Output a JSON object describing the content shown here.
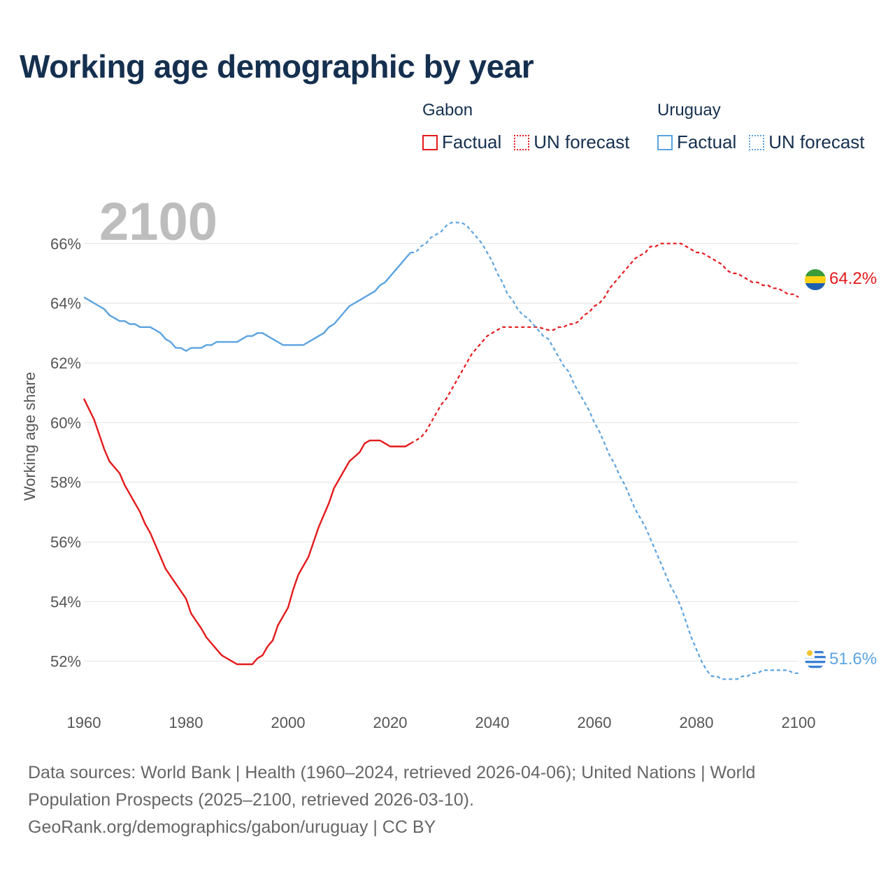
{
  "title": "Working age demographic by year",
  "year_label": "2100",
  "legend": [
    {
      "group": "Gabon",
      "factual": "Factual",
      "forecast": "UN forecast",
      "color": "#e41a1c"
    },
    {
      "group": "Uruguay",
      "factual": "Factual",
      "forecast": "UN forecast",
      "color": "#5ba3e0"
    }
  ],
  "sources": {
    "line1": "Data sources: World Bank | Health (1960–2024, retrieved 2026-04-06); United Nations | World",
    "line2": "Population Prospects (2025–2100, retrieved 2026-03-10).",
    "line3": "GeoRank.org/demographics/gabon/uruguay | CC BY"
  },
  "chart_data": {
    "type": "line",
    "title": "Working age demographic by year",
    "xlabel": "",
    "ylabel": "Working age share",
    "xlim": [
      1960,
      2100
    ],
    "ylim": [
      50.4,
      67.6
    ],
    "x_ticks": [
      1960,
      1980,
      2000,
      2020,
      2040,
      2060,
      2080,
      2100
    ],
    "x_tick_labels": [
      "1960",
      "1980",
      "2000",
      "2020",
      "2040",
      "2060",
      "2080",
      "2100"
    ],
    "y_ticks": [
      52,
      54,
      56,
      58,
      60,
      62,
      64,
      66
    ],
    "y_tick_labels": [
      "52%",
      "54%",
      "56%",
      "58%",
      "60%",
      "62%",
      "64%",
      "66%"
    ],
    "grid": true,
    "factual_range": [
      1960,
      2024
    ],
    "forecast_range": [
      2025,
      2100
    ],
    "series": [
      {
        "name": "Gabon",
        "color": "#e41a1c",
        "end_label": "64.2%",
        "points": [
          [
            1960,
            60.8
          ],
          [
            1962,
            60.1
          ],
          [
            1963,
            59.6
          ],
          [
            1964,
            59.1
          ],
          [
            1965,
            58.7
          ],
          [
            1967,
            58.3
          ],
          [
            1968,
            57.9
          ],
          [
            1969,
            57.6
          ],
          [
            1970,
            57.3
          ],
          [
            1971,
            57.0
          ],
          [
            1972,
            56.6
          ],
          [
            1973,
            56.3
          ],
          [
            1975,
            55.5
          ],
          [
            1976,
            55.1
          ],
          [
            1978,
            54.6
          ],
          [
            1980,
            54.1
          ],
          [
            1981,
            53.6
          ],
          [
            1983,
            53.1
          ],
          [
            1984,
            52.8
          ],
          [
            1985,
            52.6
          ],
          [
            1986,
            52.4
          ],
          [
            1987,
            52.2
          ],
          [
            1988,
            52.1
          ],
          [
            1989,
            52.0
          ],
          [
            1990,
            51.9
          ],
          [
            1991,
            51.9
          ],
          [
            1993,
            51.9
          ],
          [
            1994,
            52.1
          ],
          [
            1995,
            52.2
          ],
          [
            1996,
            52.5
          ],
          [
            1997,
            52.7
          ],
          [
            1998,
            53.2
          ],
          [
            2000,
            53.8
          ],
          [
            2001,
            54.4
          ],
          [
            2002,
            54.9
          ],
          [
            2004,
            55.5
          ],
          [
            2005,
            56.0
          ],
          [
            2006,
            56.5
          ],
          [
            2007,
            56.9
          ],
          [
            2008,
            57.3
          ],
          [
            2009,
            57.8
          ],
          [
            2010,
            58.1
          ],
          [
            2011,
            58.4
          ],
          [
            2012,
            58.7
          ],
          [
            2014,
            59.0
          ],
          [
            2015,
            59.3
          ],
          [
            2016,
            59.4
          ],
          [
            2017,
            59.4
          ],
          [
            2018,
            59.4
          ],
          [
            2019,
            59.3
          ],
          [
            2020,
            59.2
          ],
          [
            2021,
            59.2
          ],
          [
            2022,
            59.2
          ],
          [
            2023,
            59.2
          ],
          [
            2024,
            59.3
          ],
          [
            2025,
            59.4
          ],
          [
            2026,
            59.5
          ],
          [
            2027,
            59.7
          ],
          [
            2028,
            60.0
          ],
          [
            2029,
            60.3
          ],
          [
            2030,
            60.6
          ],
          [
            2031,
            60.8
          ],
          [
            2032,
            61.1
          ],
          [
            2033,
            61.4
          ],
          [
            2034,
            61.7
          ],
          [
            2035,
            62.0
          ],
          [
            2036,
            62.3
          ],
          [
            2037,
            62.5
          ],
          [
            2038,
            62.7
          ],
          [
            2039,
            62.9
          ],
          [
            2040,
            63.0
          ],
          [
            2041,
            63.1
          ],
          [
            2042,
            63.2
          ],
          [
            2043,
            63.2
          ],
          [
            2045,
            63.2
          ],
          [
            2047,
            63.2
          ],
          [
            2049,
            63.2
          ],
          [
            2051,
            63.1
          ],
          [
            2052,
            63.1
          ],
          [
            2053,
            63.2
          ],
          [
            2054,
            63.2
          ],
          [
            2055,
            63.3
          ],
          [
            2056,
            63.3
          ],
          [
            2057,
            63.4
          ],
          [
            2058,
            63.6
          ],
          [
            2059,
            63.7
          ],
          [
            2060,
            63.9
          ],
          [
            2061,
            64.0
          ],
          [
            2062,
            64.2
          ],
          [
            2063,
            64.5
          ],
          [
            2064,
            64.7
          ],
          [
            2065,
            64.9
          ],
          [
            2066,
            65.1
          ],
          [
            2067,
            65.3
          ],
          [
            2068,
            65.5
          ],
          [
            2069,
            65.6
          ],
          [
            2070,
            65.7
          ],
          [
            2071,
            65.9
          ],
          [
            2072,
            65.9
          ],
          [
            2073,
            66.0
          ],
          [
            2074,
            66.0
          ],
          [
            2075,
            66.0
          ],
          [
            2076,
            66.0
          ],
          [
            2077,
            66.0
          ],
          [
            2078,
            65.9
          ],
          [
            2079,
            65.8
          ],
          [
            2080,
            65.7
          ],
          [
            2081,
            65.7
          ],
          [
            2082,
            65.6
          ],
          [
            2083,
            65.5
          ],
          [
            2084,
            65.4
          ],
          [
            2085,
            65.3
          ],
          [
            2086,
            65.1
          ],
          [
            2087,
            65.0
          ],
          [
            2088,
            65.0
          ],
          [
            2089,
            64.9
          ],
          [
            2090,
            64.8
          ],
          [
            2091,
            64.7
          ],
          [
            2092,
            64.7
          ],
          [
            2093,
            64.6
          ],
          [
            2094,
            64.6
          ],
          [
            2095,
            64.5
          ],
          [
            2096,
            64.5
          ],
          [
            2097,
            64.4
          ],
          [
            2098,
            64.3
          ],
          [
            2099,
            64.3
          ],
          [
            2100,
            64.2
          ]
        ]
      },
      {
        "name": "Uruguay",
        "color": "#5ba3e0",
        "end_label": "51.6%",
        "points": [
          [
            1960,
            64.2
          ],
          [
            1962,
            64.0
          ],
          [
            1963,
            63.9
          ],
          [
            1964,
            63.8
          ],
          [
            1965,
            63.6
          ],
          [
            1967,
            63.4
          ],
          [
            1968,
            63.4
          ],
          [
            1969,
            63.3
          ],
          [
            1970,
            63.3
          ],
          [
            1971,
            63.2
          ],
          [
            1973,
            63.2
          ],
          [
            1974,
            63.1
          ],
          [
            1975,
            63.0
          ],
          [
            1976,
            62.8
          ],
          [
            1977,
            62.7
          ],
          [
            1978,
            62.5
          ],
          [
            1979,
            62.5
          ],
          [
            1980,
            62.4
          ],
          [
            1981,
            62.5
          ],
          [
            1983,
            62.5
          ],
          [
            1984,
            62.6
          ],
          [
            1985,
            62.6
          ],
          [
            1986,
            62.7
          ],
          [
            1988,
            62.7
          ],
          [
            1990,
            62.7
          ],
          [
            1991,
            62.8
          ],
          [
            1992,
            62.9
          ],
          [
            1993,
            62.9
          ],
          [
            1994,
            63.0
          ],
          [
            1995,
            63.0
          ],
          [
            1996,
            62.9
          ],
          [
            1997,
            62.8
          ],
          [
            1998,
            62.7
          ],
          [
            1999,
            62.6
          ],
          [
            2000,
            62.6
          ],
          [
            2001,
            62.6
          ],
          [
            2002,
            62.6
          ],
          [
            2003,
            62.6
          ],
          [
            2004,
            62.7
          ],
          [
            2005,
            62.8
          ],
          [
            2006,
            62.9
          ],
          [
            2007,
            63.0
          ],
          [
            2008,
            63.2
          ],
          [
            2009,
            63.3
          ],
          [
            2010,
            63.5
          ],
          [
            2011,
            63.7
          ],
          [
            2012,
            63.9
          ],
          [
            2013,
            64.0
          ],
          [
            2014,
            64.1
          ],
          [
            2015,
            64.2
          ],
          [
            2016,
            64.3
          ],
          [
            2017,
            64.4
          ],
          [
            2018,
            64.6
          ],
          [
            2019,
            64.7
          ],
          [
            2020,
            64.9
          ],
          [
            2021,
            65.1
          ],
          [
            2022,
            65.3
          ],
          [
            2023,
            65.5
          ],
          [
            2024,
            65.7
          ],
          [
            2025,
            65.7
          ],
          [
            2026,
            65.9
          ],
          [
            2027,
            66.0
          ],
          [
            2028,
            66.2
          ],
          [
            2029,
            66.3
          ],
          [
            2030,
            66.4
          ],
          [
            2031,
            66.6
          ],
          [
            2032,
            66.7
          ],
          [
            2033,
            66.7
          ],
          [
            2034,
            66.7
          ],
          [
            2035,
            66.6
          ],
          [
            2036,
            66.4
          ],
          [
            2037,
            66.2
          ],
          [
            2038,
            66.0
          ],
          [
            2039,
            65.7
          ],
          [
            2040,
            65.4
          ],
          [
            2041,
            65.0
          ],
          [
            2042,
            64.7
          ],
          [
            2043,
            64.3
          ],
          [
            2044,
            64.1
          ],
          [
            2045,
            63.8
          ],
          [
            2046,
            63.6
          ],
          [
            2047,
            63.5
          ],
          [
            2048,
            63.3
          ],
          [
            2049,
            63.1
          ],
          [
            2050,
            62.9
          ],
          [
            2051,
            62.8
          ],
          [
            2052,
            62.5
          ],
          [
            2053,
            62.2
          ],
          [
            2054,
            61.9
          ],
          [
            2055,
            61.7
          ],
          [
            2056,
            61.3
          ],
          [
            2057,
            61.0
          ],
          [
            2058,
            60.7
          ],
          [
            2059,
            60.4
          ],
          [
            2060,
            60.0
          ],
          [
            2061,
            59.7
          ],
          [
            2062,
            59.3
          ],
          [
            2063,
            58.9
          ],
          [
            2064,
            58.6
          ],
          [
            2065,
            58.2
          ],
          [
            2066,
            57.9
          ],
          [
            2067,
            57.5
          ],
          [
            2068,
            57.1
          ],
          [
            2069,
            56.8
          ],
          [
            2070,
            56.5
          ],
          [
            2071,
            56.1
          ],
          [
            2072,
            55.7
          ],
          [
            2073,
            55.3
          ],
          [
            2074,
            54.9
          ],
          [
            2075,
            54.5
          ],
          [
            2076,
            54.2
          ],
          [
            2077,
            53.8
          ],
          [
            2078,
            53.3
          ],
          [
            2079,
            52.8
          ],
          [
            2080,
            52.4
          ],
          [
            2081,
            52.0
          ],
          [
            2082,
            51.7
          ],
          [
            2083,
            51.5
          ],
          [
            2084,
            51.5
          ],
          [
            2085,
            51.4
          ],
          [
            2086,
            51.4
          ],
          [
            2087,
            51.4
          ],
          [
            2088,
            51.4
          ],
          [
            2089,
            51.5
          ],
          [
            2090,
            51.5
          ],
          [
            2091,
            51.6
          ],
          [
            2092,
            51.6
          ],
          [
            2093,
            51.7
          ],
          [
            2094,
            51.7
          ],
          [
            2095,
            51.7
          ],
          [
            2096,
            51.7
          ],
          [
            2097,
            51.7
          ],
          [
            2098,
            51.7
          ],
          [
            2099,
            51.6
          ],
          [
            2100,
            51.6
          ]
        ]
      }
    ]
  }
}
